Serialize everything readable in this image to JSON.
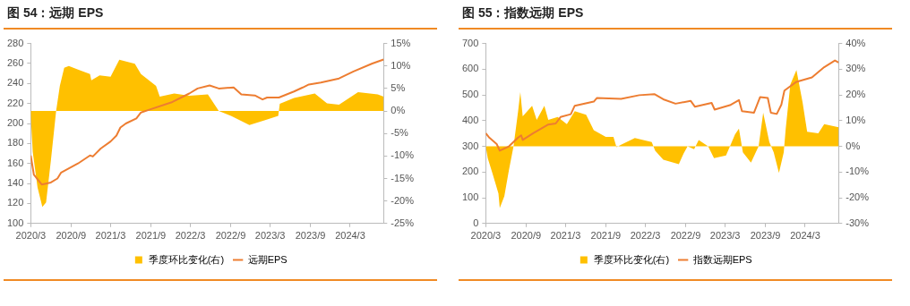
{
  "chart_data": [
    {
      "type": "line",
      "title": "图 54：远期 EPS",
      "legend": "bottom",
      "marker": "none",
      "xlim": [
        "2020-03-01",
        "2024-08-01"
      ],
      "xticks": [
        {
          "value": "2020-03-01",
          "label": "2020/3"
        },
        {
          "value": "2020-09-01",
          "label": "2020/9"
        },
        {
          "value": "2021-03-01",
          "label": "2021/3"
        },
        {
          "value": "2021-09-01",
          "label": "2021/9"
        },
        {
          "value": "2022-03-01",
          "label": "2022/3"
        },
        {
          "value": "2022-09-01",
          "label": "2022/9"
        },
        {
          "value": "2023-03-01",
          "label": "2023/3"
        },
        {
          "value": "2023-09-01",
          "label": "2023/9"
        },
        {
          "value": "2024-03-01",
          "label": "2024/3"
        }
      ],
      "ylim": [
        100,
        280
      ],
      "yticks": [
        100,
        120,
        140,
        160,
        180,
        200,
        220,
        240,
        260,
        280
      ],
      "y2lim": [
        -25,
        15
      ],
      "y2ticks": [
        {
          "value": -25,
          "label": "-25%"
        },
        {
          "value": -20,
          "label": "-20%"
        },
        {
          "value": -15,
          "label": "-15%"
        },
        {
          "value": -10,
          "label": "-10%"
        },
        {
          "value": -5,
          "label": "-5%"
        },
        {
          "value": 0,
          "label": "0%"
        },
        {
          "value": 5,
          "label": "5%"
        },
        {
          "value": 10,
          "label": "10%"
        },
        {
          "value": 15,
          "label": "15%"
        }
      ],
      "series": [
        {
          "name": "季度环比变化(右)",
          "type": "area",
          "axis": "y2",
          "color": "#ffc000",
          "x": [
            "2020-03-01",
            "2020-03-10",
            "2020-04-01",
            "2020-04-23",
            "2020-05-10",
            "2020-06-01",
            "2020-06-25",
            "2020-07-12",
            "2020-08-01",
            "2020-08-22",
            "2020-10-03",
            "2020-11-27",
            "2020-12-03",
            "2021-01-10",
            "2021-03-01",
            "2021-04-10",
            "2021-06-20",
            "2021-07-18",
            "2021-09-25",
            "2021-10-12",
            "2021-12-17",
            "2022-02-24",
            "2022-05-20",
            "2022-07-09",
            "2022-09-03",
            "2022-11-26",
            "2023-02-03",
            "2023-04-07",
            "2023-04-14",
            "2023-06-18",
            "2023-09-21",
            "2023-11-16",
            "2024-01-10",
            "2024-04-06",
            "2024-07-05",
            "2024-08-01"
          ],
          "values": [
            -1.1,
            -9.1,
            -17,
            -21.3,
            -20.3,
            -11,
            0,
            5.6,
            9.6,
            10,
            9.2,
            8.2,
            6.8,
            7.9,
            7.6,
            11.4,
            10.5,
            8.2,
            5.6,
            3.2,
            3.9,
            3.4,
            3.7,
            0,
            -1.1,
            -3.1,
            -2.1,
            -1.1,
            1.6,
            2.9,
            3.9,
            1.7,
            1.4,
            4.2,
            3.7,
            3.2
          ]
        },
        {
          "name": "远期EPS",
          "type": "line",
          "color": "#ed7d31",
          "x": [
            "2020-03-01",
            "2020-03-15",
            "2020-04-20",
            "2020-06-01",
            "2020-07-01",
            "2020-07-18",
            "2020-10-03",
            "2020-11-27",
            "2020-12-10",
            "2021-01-15",
            "2021-03-01",
            "2021-03-28",
            "2021-04-15",
            "2021-05-10",
            "2021-06-27",
            "2021-07-18",
            "2021-08-28",
            "2021-12-03",
            "2022-02-24",
            "2022-04-03",
            "2022-05-28",
            "2022-07-09",
            "2022-09-15",
            "2022-10-20",
            "2022-12-21",
            "2023-01-25",
            "2023-02-15",
            "2023-04-10",
            "2023-06-18",
            "2023-07-28",
            "2023-08-25",
            "2023-10-19",
            "2024-01-10",
            "2024-03-16",
            "2024-06-10",
            "2024-08-01"
          ],
          "values": [
            168,
            149,
            139,
            141,
            145,
            151,
            160,
            168,
            167,
            175,
            182,
            188,
            196,
            200,
            205,
            211,
            214,
            221,
            230,
            235,
            238,
            235,
            236,
            229,
            228,
            224,
            226,
            226,
            232,
            236,
            239,
            241,
            245,
            252,
            260,
            264
          ]
        }
      ]
    },
    {
      "type": "line",
      "title": "图 55：指数远期 EPS",
      "legend": "bottom",
      "marker": "none",
      "xlim": [
        "2020-03-01",
        "2024-08-01"
      ],
      "xticks": [
        {
          "value": "2020-03-01",
          "label": "2020/3"
        },
        {
          "value": "2020-09-01",
          "label": "2020/9"
        },
        {
          "value": "2021-03-01",
          "label": "2021/3"
        },
        {
          "value": "2021-09-01",
          "label": "2021/9"
        },
        {
          "value": "2022-03-01",
          "label": "2022/3"
        },
        {
          "value": "2022-09-01",
          "label": "2022/9"
        },
        {
          "value": "2023-03-01",
          "label": "2023/3"
        },
        {
          "value": "2023-09-01",
          "label": "2023/9"
        },
        {
          "value": "2024-03-01",
          "label": "2024/3"
        }
      ],
      "ylim": [
        0,
        700
      ],
      "yticks": [
        0,
        100,
        200,
        300,
        400,
        500,
        600,
        700
      ],
      "y2lim": [
        -30,
        40
      ],
      "y2ticks": [
        {
          "value": -30,
          "label": "-30%"
        },
        {
          "value": -20,
          "label": "-20%"
        },
        {
          "value": -10,
          "label": "-10%"
        },
        {
          "value": 0,
          "label": "0%"
        },
        {
          "value": 10,
          "label": "10%"
        },
        {
          "value": 20,
          "label": "20%"
        },
        {
          "value": 30,
          "label": "30%"
        },
        {
          "value": 40,
          "label": "40%"
        }
      ],
      "series": [
        {
          "name": "季度环比变化(右)",
          "type": "area",
          "axis": "y2",
          "color": "#ffc000",
          "x": [
            "2020-03-01",
            "2020-03-10",
            "2020-03-31",
            "2020-04-28",
            "2020-05-04",
            "2020-05-25",
            "2020-06-15",
            "2020-07-06",
            "2020-07-27",
            "2020-08-06",
            "2020-08-17",
            "2020-09-29",
            "2020-10-20",
            "2020-11-24",
            "2020-12-12",
            "2021-01-24",
            "2021-03-07",
            "2021-04-12",
            "2021-06-03",
            "2021-07-08",
            "2021-09-01",
            "2021-10-06",
            "2021-10-20",
            "2021-11-10",
            "2022-01-12",
            "2022-03-30",
            "2022-04-15",
            "2022-05-22",
            "2022-08-01",
            "2022-08-22",
            "2022-09-10",
            "2022-10-10",
            "2022-10-31",
            "2022-12-13",
            "2023-01-09",
            "2023-03-05",
            "2023-03-23",
            "2023-04-15",
            "2023-05-03",
            "2023-05-21",
            "2023-06-27",
            "2023-08-01",
            "2023-08-22",
            "2023-09-19",
            "2023-10-09",
            "2023-11-02",
            "2023-11-24",
            "2023-12-03",
            "2023-12-24",
            "2024-01-21",
            "2024-02-18",
            "2024-03-10",
            "2024-04-30",
            "2024-05-27",
            "2024-08-01"
          ],
          "values": [
            0,
            -4.6,
            -10.3,
            -18.3,
            -24,
            -19.4,
            -9.2,
            0,
            13.7,
            21.1,
            11.7,
            15.8,
            10.3,
            15.8,
            10.3,
            11.4,
            8.6,
            13.7,
            12.3,
            6.3,
            3.7,
            3.7,
            -0.3,
            0.6,
            3.2,
            1.7,
            -1.7,
            -5.2,
            -6.9,
            -2.9,
            0,
            -1.1,
            2.5,
            0,
            -4.6,
            -3.5,
            0,
            4.6,
            6.9,
            -2.3,
            -6.3,
            0,
            13.1,
            1.7,
            -2.3,
            -10.3,
            -2.3,
            6.9,
            24,
            29.7,
            17.2,
            5.7,
            5.1,
            8.6,
            7.4
          ]
        },
        {
          "name": "指数远期EPS",
          "type": "line",
          "color": "#ed7d31",
          "x": [
            "2020-03-01",
            "2020-03-17",
            "2020-04-20",
            "2020-05-04",
            "2020-06-15",
            "2020-07-27",
            "2020-08-10",
            "2020-08-17",
            "2020-10-04",
            "2020-12-12",
            "2021-01-15",
            "2021-02-06",
            "2021-03-25",
            "2021-04-12",
            "2021-07-08",
            "2021-07-22",
            "2021-11-10",
            "2022-02-01",
            "2022-04-11",
            "2022-05-22",
            "2022-07-17",
            "2022-09-24",
            "2022-10-14",
            "2022-12-29",
            "2023-01-12",
            "2023-03-23",
            "2023-05-03",
            "2023-05-17",
            "2023-07-11",
            "2023-08-08",
            "2023-09-12",
            "2023-09-26",
            "2023-10-23",
            "2023-11-13",
            "2023-11-27",
            "2024-01-21",
            "2024-04-01",
            "2024-05-27",
            "2024-07-15",
            "2024-08-01"
          ],
          "values": [
            351,
            334,
            309,
            283,
            300,
            334,
            343,
            325,
            351,
            385,
            389,
            414,
            425,
            458,
            474,
            488,
            485,
            499,
            503,
            483,
            466,
            477,
            454,
            469,
            443,
            460,
            480,
            437,
            431,
            492,
            488,
            431,
            426,
            462,
            517,
            551,
            568,
            608,
            634,
            626
          ]
        }
      ]
    }
  ]
}
